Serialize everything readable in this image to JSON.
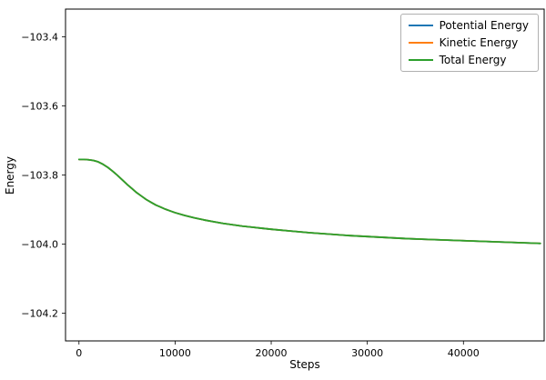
{
  "chart_data": {
    "type": "line",
    "title": "",
    "xlabel": "Steps",
    "ylabel": "Energy",
    "xlim": [
      -1400,
      48400
    ],
    "ylim": [
      -104.28,
      -103.32
    ],
    "xticks": [
      0,
      10000,
      20000,
      30000,
      40000
    ],
    "xtick_labels": [
      "0",
      "10000",
      "20000",
      "30000",
      "40000"
    ],
    "yticks": [
      -103.4,
      -103.6,
      -103.8,
      -104.0,
      -104.2
    ],
    "ytick_labels": [
      "−103.4",
      "−103.6",
      "−103.8",
      "−104.0",
      "−104.2"
    ],
    "grid": false,
    "legend_position": "upper right",
    "x": [
      0,
      500,
      1000,
      1500,
      2000,
      2500,
      3000,
      3500,
      4000,
      4500,
      5000,
      5500,
      6000,
      6500,
      7000,
      7500,
      8000,
      8500,
      9000,
      9500,
      10000,
      11000,
      12000,
      13000,
      14000,
      15000,
      16000,
      17000,
      18000,
      19000,
      20000,
      22000,
      24000,
      26000,
      28000,
      30000,
      32000,
      34000,
      36000,
      38000,
      40000,
      42000,
      44000,
      46000,
      48000
    ],
    "series": [
      {
        "name": "Potential Energy",
        "color": "#1f77b4",
        "values": [
          -103.755,
          -103.755,
          -103.756,
          -103.758,
          -103.762,
          -103.769,
          -103.778,
          -103.789,
          -103.801,
          -103.814,
          -103.827,
          -103.839,
          -103.851,
          -103.861,
          -103.871,
          -103.879,
          -103.887,
          -103.893,
          -103.899,
          -103.904,
          -103.909,
          -103.917,
          -103.924,
          -103.93,
          -103.935,
          -103.94,
          -103.944,
          -103.948,
          -103.951,
          -103.954,
          -103.957,
          -103.962,
          -103.967,
          -103.971,
          -103.975,
          -103.978,
          -103.981,
          -103.984,
          -103.986,
          -103.988,
          -103.99,
          -103.992,
          -103.994,
          -103.996,
          -103.998
        ]
      },
      {
        "name": "Kinetic Energy",
        "color": "#ff7f0e",
        "values": [
          -103.755,
          -103.755,
          -103.756,
          -103.758,
          -103.762,
          -103.769,
          -103.778,
          -103.789,
          -103.801,
          -103.814,
          -103.827,
          -103.839,
          -103.851,
          -103.861,
          -103.871,
          -103.879,
          -103.887,
          -103.893,
          -103.899,
          -103.904,
          -103.909,
          -103.917,
          -103.924,
          -103.93,
          -103.935,
          -103.94,
          -103.944,
          -103.948,
          -103.951,
          -103.954,
          -103.957,
          -103.962,
          -103.967,
          -103.971,
          -103.975,
          -103.978,
          -103.981,
          -103.984,
          -103.986,
          -103.988,
          -103.99,
          -103.992,
          -103.994,
          -103.996,
          -103.998
        ]
      },
      {
        "name": "Total Energy",
        "color": "#2ca02c",
        "values": [
          -103.755,
          -103.755,
          -103.756,
          -103.758,
          -103.762,
          -103.769,
          -103.778,
          -103.789,
          -103.801,
          -103.814,
          -103.827,
          -103.839,
          -103.851,
          -103.861,
          -103.871,
          -103.879,
          -103.887,
          -103.893,
          -103.899,
          -103.904,
          -103.909,
          -103.917,
          -103.924,
          -103.93,
          -103.935,
          -103.94,
          -103.944,
          -103.948,
          -103.951,
          -103.954,
          -103.957,
          -103.962,
          -103.967,
          -103.971,
          -103.975,
          -103.978,
          -103.981,
          -103.984,
          -103.986,
          -103.988,
          -103.99,
          -103.992,
          -103.994,
          -103.996,
          -103.998
        ]
      }
    ]
  }
}
